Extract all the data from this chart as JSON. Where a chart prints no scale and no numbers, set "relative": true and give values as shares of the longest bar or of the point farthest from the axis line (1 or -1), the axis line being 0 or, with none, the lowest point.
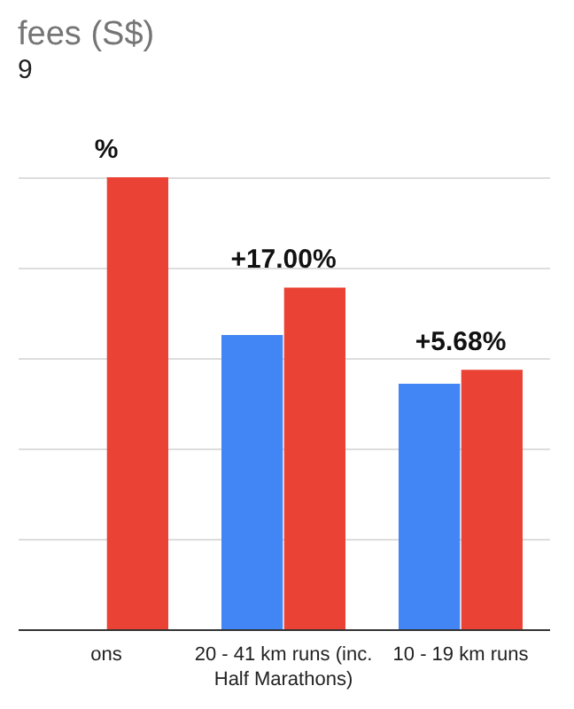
{
  "chart_data": {
    "type": "bar",
    "title": "fees (S$)",
    "subtitle": "9",
    "relative": true,
    "grid": "y",
    "categories": [
      "ons",
      "20 - 41 km runs (inc. Half Marathons)",
      "10 - 19 km runs"
    ],
    "series": [
      {
        "color": "#4285f4",
        "values": [
          null,
          0.651,
          0.543
        ]
      },
      {
        "color": "#ea4335",
        "values": [
          1,
          0.756,
          0.574
        ]
      }
    ],
    "annotations": [
      {
        "text": "%",
        "x": "ons",
        "y": 1
      },
      {
        "text": "+17.00%",
        "x": "20 - 41 km runs (inc. Half Marathons)",
        "y": 0.756
      },
      {
        "text": "+5.68%",
        "x": "10 - 19 km runs",
        "y": 0.574
      }
    ]
  }
}
